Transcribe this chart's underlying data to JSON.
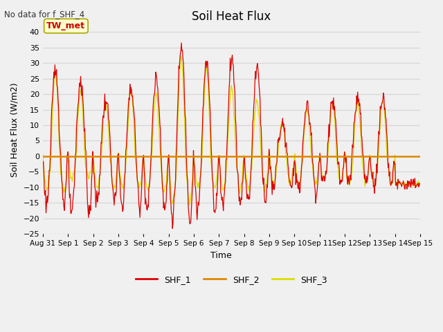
{
  "title": "Soil Heat Flux",
  "no_data_label": "No data for f_SHF_4",
  "ylabel": "Soil Heat Flux (W/m2)",
  "xlabel": "Time",
  "ylim": [
    -25,
    42
  ],
  "yticks": [
    -25,
    -20,
    -15,
    -10,
    -5,
    0,
    5,
    10,
    15,
    20,
    25,
    30,
    35,
    40
  ],
  "site_label": "TW_met",
  "site_label_color": "#cc0000",
  "site_box_facecolor": "#ffffcc",
  "site_box_edgecolor": "#aaa800",
  "bg_color": "#f0f0f0",
  "plot_bg_color": "#f0f0f0",
  "line_colors": {
    "SHF_1": "#dd0000",
    "SHF_2": "#dd8800",
    "SHF_3": "#dddd00"
  },
  "x_tick_labels": [
    "Aug 31",
    "Sep 1",
    "Sep 2",
    "Sep 3",
    "Sep 4",
    "Sep 5",
    "Sep 6",
    "Sep 7",
    "Sep 8",
    "Sep 9",
    "Sep 10",
    "Sep 11",
    "Sep 12",
    "Sep 13",
    "Sep 14",
    "Sep 15"
  ],
  "hline_color": "#dd8800",
  "hline_lw": 1.8,
  "grid_color": "#d8d8d8"
}
